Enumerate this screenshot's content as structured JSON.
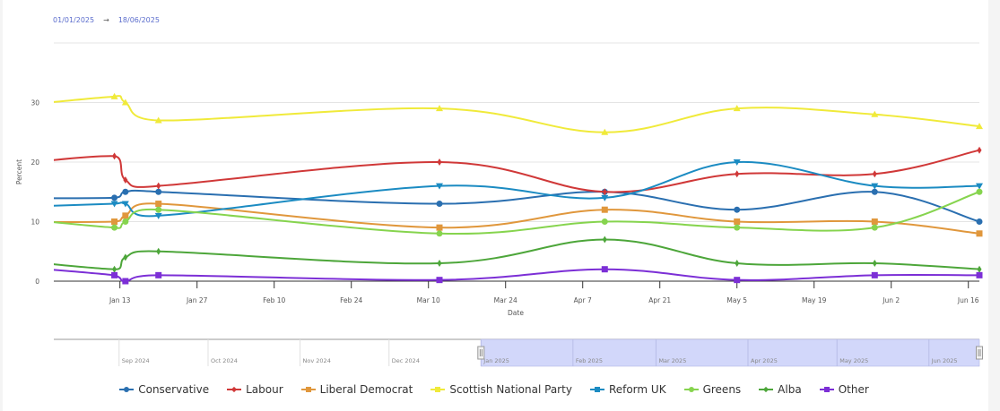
{
  "date_range": {
    "from": "01/01/2025",
    "arrow": "→",
    "to": "18/06/2025"
  },
  "chart_data": {
    "type": "line",
    "title": "",
    "xlabel": "Date",
    "ylabel": "Percent",
    "ylim": [
      0,
      40
    ],
    "yticks": [
      0,
      10,
      20,
      30
    ],
    "xlim": [
      "2025-01-01",
      "2025-06-18"
    ],
    "xticks": [
      {
        "date": "2025-01-13",
        "label": "Jan 13"
      },
      {
        "date": "2025-01-27",
        "label": "Jan 27"
      },
      {
        "date": "2025-02-10",
        "label": "Feb 10"
      },
      {
        "date": "2025-02-24",
        "label": "Feb 24"
      },
      {
        "date": "2025-03-10",
        "label": "Mar 10"
      },
      {
        "date": "2025-03-24",
        "label": "Mar 24"
      },
      {
        "date": "2025-04-07",
        "label": "Apr 7"
      },
      {
        "date": "2025-04-21",
        "label": "Apr 21"
      },
      {
        "date": "2025-05-05",
        "label": "May 5"
      },
      {
        "date": "2025-05-19",
        "label": "May 19"
      },
      {
        "date": "2025-06-02",
        "label": "Jun 2"
      },
      {
        "date": "2025-06-16",
        "label": "Jun 16"
      }
    ],
    "grid": true,
    "legend_position": "bottom",
    "x": [
      "2024-12-10",
      "2025-01-12",
      "2025-01-14",
      "2025-01-20",
      "2025-03-12",
      "2025-04-11",
      "2025-05-05",
      "2025-05-30",
      "2025-06-18"
    ],
    "series": [
      {
        "name": "Conservative",
        "color": "#2a6fb0",
        "marker": "circle",
        "values": [
          14,
          14,
          15,
          15,
          13,
          15,
          12,
          15,
          10
        ]
      },
      {
        "name": "Labour",
        "color": "#d03838",
        "marker": "diamond",
        "values": [
          18,
          21,
          17,
          16,
          20,
          15,
          18,
          18,
          22
        ]
      },
      {
        "name": "Liberal Democrat",
        "color": "#e0973c",
        "marker": "square",
        "values": [
          10,
          10,
          11,
          13,
          9,
          12,
          10,
          10,
          8
        ]
      },
      {
        "name": "Scottish National Party",
        "color": "#f0ea3a",
        "marker": "triangle",
        "values": [
          28,
          31,
          30,
          27,
          29,
          25,
          29,
          28,
          26
        ]
      },
      {
        "name": "Reform UK",
        "color": "#1b8bc2",
        "marker": "triangle-down",
        "values": [
          12,
          13,
          13,
          11,
          16,
          14,
          20,
          16,
          16
        ]
      },
      {
        "name": "Greens",
        "color": "#86d44e",
        "marker": "circle",
        "values": [
          12,
          9,
          10,
          12,
          8,
          10,
          9,
          9,
          15
        ]
      },
      {
        "name": "Alba",
        "color": "#4da63a",
        "marker": "diamond",
        "values": [
          5,
          2,
          4,
          5,
          3,
          7,
          3,
          3,
          2
        ]
      },
      {
        "name": "Other",
        "color": "#7c2fd6",
        "marker": "square",
        "values": [
          3.5,
          1,
          0,
          1,
          0.2,
          2,
          0.2,
          1,
          1
        ]
      }
    ],
    "navigator": {
      "range": [
        "2024-08-10",
        "2025-06-18"
      ],
      "selected": [
        "2025-01-01",
        "2025-06-18"
      ],
      "labels": [
        "Sep 2024",
        "Oct 2024",
        "Nov 2024",
        "Dec 2024",
        "Jan 2025",
        "Feb 2025",
        "Mar 2025",
        "Apr 2025",
        "May 2025",
        "Jun 2025"
      ]
    }
  }
}
